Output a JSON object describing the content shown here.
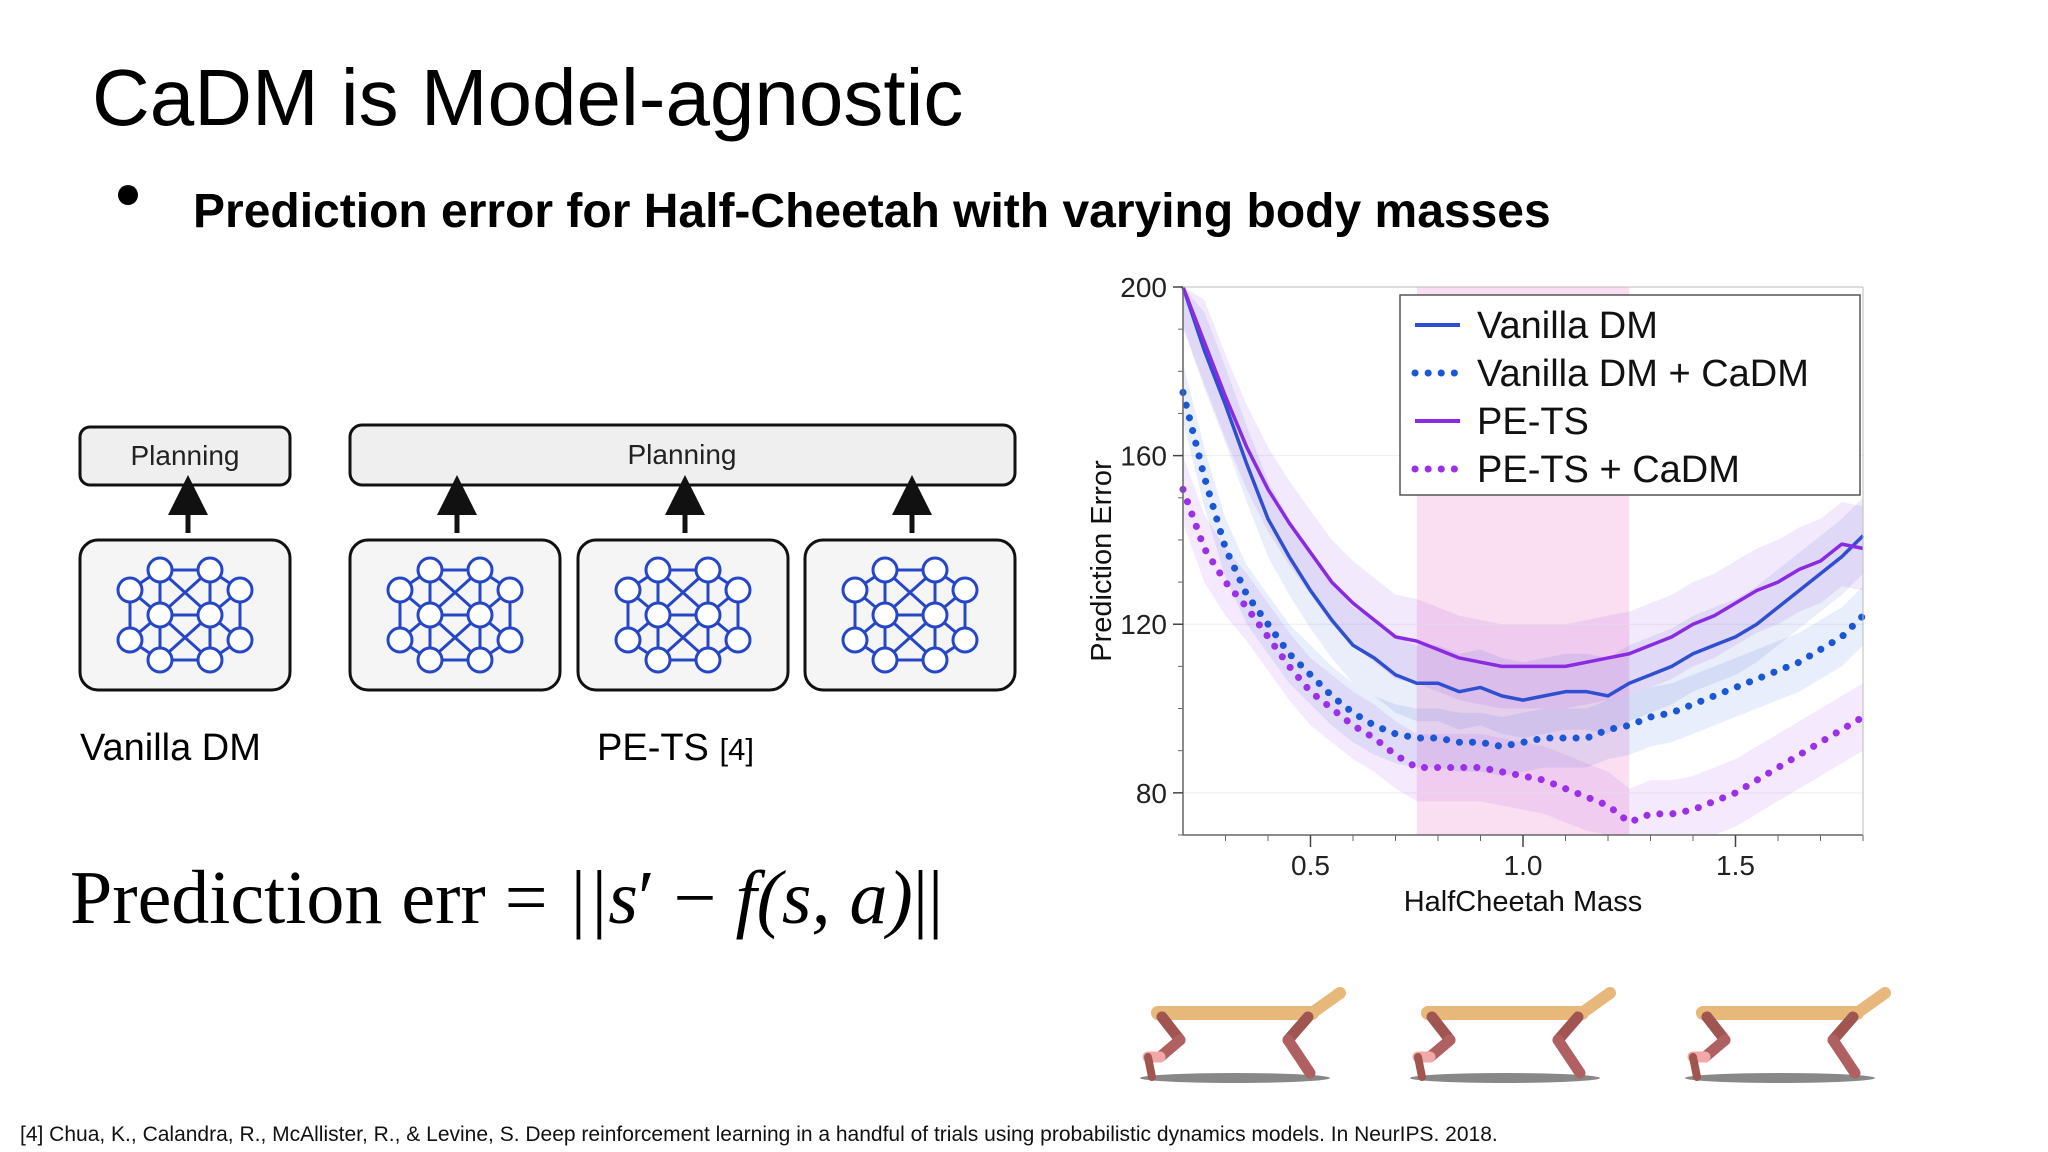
{
  "slide": {
    "title": "CaDM is Model-agnostic",
    "bullet": "Prediction error for Half-Cheetah with varying body masses",
    "footnote": "[4] Chua, K., Calandra, R., McAllister, R., & Levine, S. Deep reinforcement learning in a handful of trials using probabilistic dynamics models. In NeurIPS. 2018."
  },
  "diagram": {
    "planning_label": "Planning",
    "vanilla_caption": "Vanilla DM",
    "pets_caption": "PE-TS",
    "pets_citation": "[4]"
  },
  "formula": {
    "lhs": "Prediction err",
    "equals": "=",
    "rhs_prefix": "||s",
    "prime": "′",
    "minus": "−",
    "rhs_f": "f",
    "rhs_args": "(s, a)",
    "rhs_suffix": "||"
  },
  "colors": {
    "vanilla": "#2e4fcf",
    "vanilla_cadm": "#1a56d6",
    "pets": "#8a2be2",
    "pets_cadm": "#9b30e8",
    "highlight": "#f9d6ee",
    "node_stroke": "#2646c8"
  },
  "chart_data": {
    "type": "line",
    "ylabel": "Prediction Error",
    "xlabel": "HalfCheetah Mass",
    "xlim": [
      0.2,
      1.8
    ],
    "ylim": [
      70,
      200
    ],
    "xticks": [
      0.5,
      1.0,
      1.5
    ],
    "xtick_labels": [
      "0.5",
      "1.0",
      "1.5"
    ],
    "yticks": [
      80,
      120,
      160,
      200
    ],
    "ytick_labels": [
      "80",
      "120",
      "160",
      "200"
    ],
    "highlight_range": [
      0.75,
      1.25
    ],
    "legend_position": "top-right",
    "x": [
      0.2,
      0.25,
      0.3,
      0.35,
      0.4,
      0.45,
      0.5,
      0.55,
      0.6,
      0.65,
      0.7,
      0.75,
      0.8,
      0.85,
      0.9,
      0.95,
      1.0,
      1.05,
      1.1,
      1.15,
      1.2,
      1.25,
      1.3,
      1.35,
      1.4,
      1.45,
      1.5,
      1.55,
      1.6,
      1.65,
      1.7,
      1.75,
      1.8
    ],
    "series": [
      {
        "name": "Vanilla DM",
        "style": "solid",
        "color": "#2e4fcf",
        "values": [
          200,
          185,
          172,
          158,
          145,
          136,
          128,
          121,
          115,
          112,
          108,
          106,
          106,
          104,
          105,
          103,
          102,
          103,
          104,
          104,
          103,
          106,
          108,
          110,
          113,
          115,
          117,
          120,
          124,
          128,
          132,
          136,
          141
        ]
      },
      {
        "name": "Vanilla DM + CaDM",
        "style": "dotted",
        "color": "#1a56d6",
        "values": [
          175,
          155,
          138,
          127,
          120,
          113,
          108,
          103,
          99,
          96,
          94,
          93,
          93,
          92,
          92,
          91,
          92,
          93,
          93,
          93,
          95,
          96,
          98,
          99,
          101,
          103,
          105,
          107,
          109,
          111,
          114,
          117,
          122
        ]
      },
      {
        "name": "PE-TS",
        "style": "solid",
        "color": "#8a2be2",
        "values": [
          200,
          187,
          174,
          162,
          152,
          144,
          137,
          130,
          125,
          121,
          117,
          116,
          114,
          112,
          111,
          110,
          110,
          110,
          110,
          111,
          112,
          113,
          115,
          117,
          120,
          122,
          125,
          128,
          130,
          133,
          135,
          139,
          138
        ]
      },
      {
        "name": "PE-TS + CaDM",
        "style": "dotted",
        "color": "#9b30e8",
        "values": [
          152,
          138,
          130,
          124,
          117,
          110,
          104,
          100,
          96,
          93,
          89,
          86,
          86,
          86,
          86,
          85,
          84,
          83,
          81,
          79,
          77,
          73,
          75,
          75,
          76,
          78,
          80,
          83,
          86,
          89,
          92,
          95,
          98
        ]
      }
    ]
  }
}
